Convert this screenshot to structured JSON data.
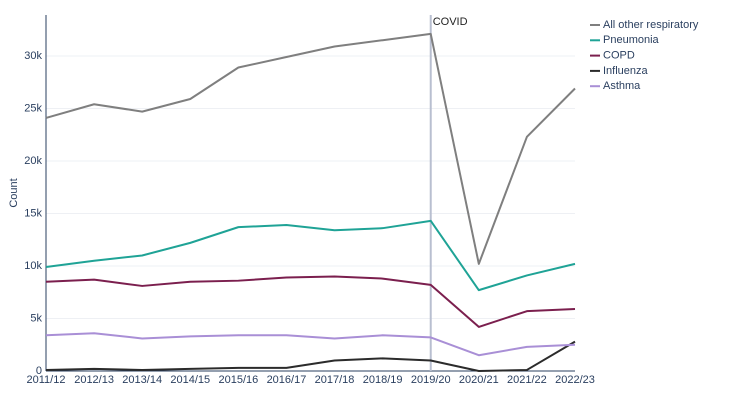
{
  "chart_data": {
    "type": "line",
    "y_label": "Count",
    "categories": [
      "2011/12",
      "2012/13",
      "2013/14",
      "2014/15",
      "2015/16",
      "2016/17",
      "2017/18",
      "2018/19",
      "2019/20",
      "2020/21",
      "2021/22",
      "2022/23"
    ],
    "series": [
      {
        "name": "All other respiratory",
        "color": "#7f7f7f",
        "values": [
          24100,
          25400,
          24700,
          25900,
          28900,
          29900,
          30900,
          31500,
          32100,
          10200,
          22300,
          26900
        ]
      },
      {
        "name": "Pneumonia",
        "color": "#1fa396",
        "values": [
          9900,
          10500,
          11000,
          12200,
          13700,
          13900,
          13400,
          13600,
          14300,
          7700,
          9100,
          10200
        ]
      },
      {
        "name": "COPD",
        "color": "#7b1f4e",
        "values": [
          8500,
          8700,
          8100,
          8500,
          8600,
          8900,
          9000,
          8800,
          8200,
          4200,
          5700,
          5900
        ]
      },
      {
        "name": "Influenza",
        "color": "#2b2b2b",
        "values": [
          100,
          200,
          100,
          200,
          300,
          300,
          1000,
          1200,
          1000,
          0,
          100,
          2800
        ]
      },
      {
        "name": "Asthma",
        "color": "#a98fd6",
        "values": [
          3400,
          3600,
          3100,
          3300,
          3400,
          3400,
          3100,
          3400,
          3200,
          1500,
          2300,
          2500
        ]
      }
    ],
    "ylim": [
      0,
      33900
    ],
    "yticks": [
      0,
      {
        "value": 5000,
        "label": "5k"
      },
      {
        "value": 10000,
        "label": "10k"
      },
      {
        "value": 15000,
        "label": "15k"
      },
      {
        "value": 20000,
        "label": "20k"
      },
      {
        "value": 25000,
        "label": "25k"
      },
      {
        "value": 30000,
        "label": "30k"
      }
    ],
    "grid": true,
    "legend": "top-right",
    "annotation": {
      "text": "COVID",
      "x": "2019/20"
    }
  }
}
